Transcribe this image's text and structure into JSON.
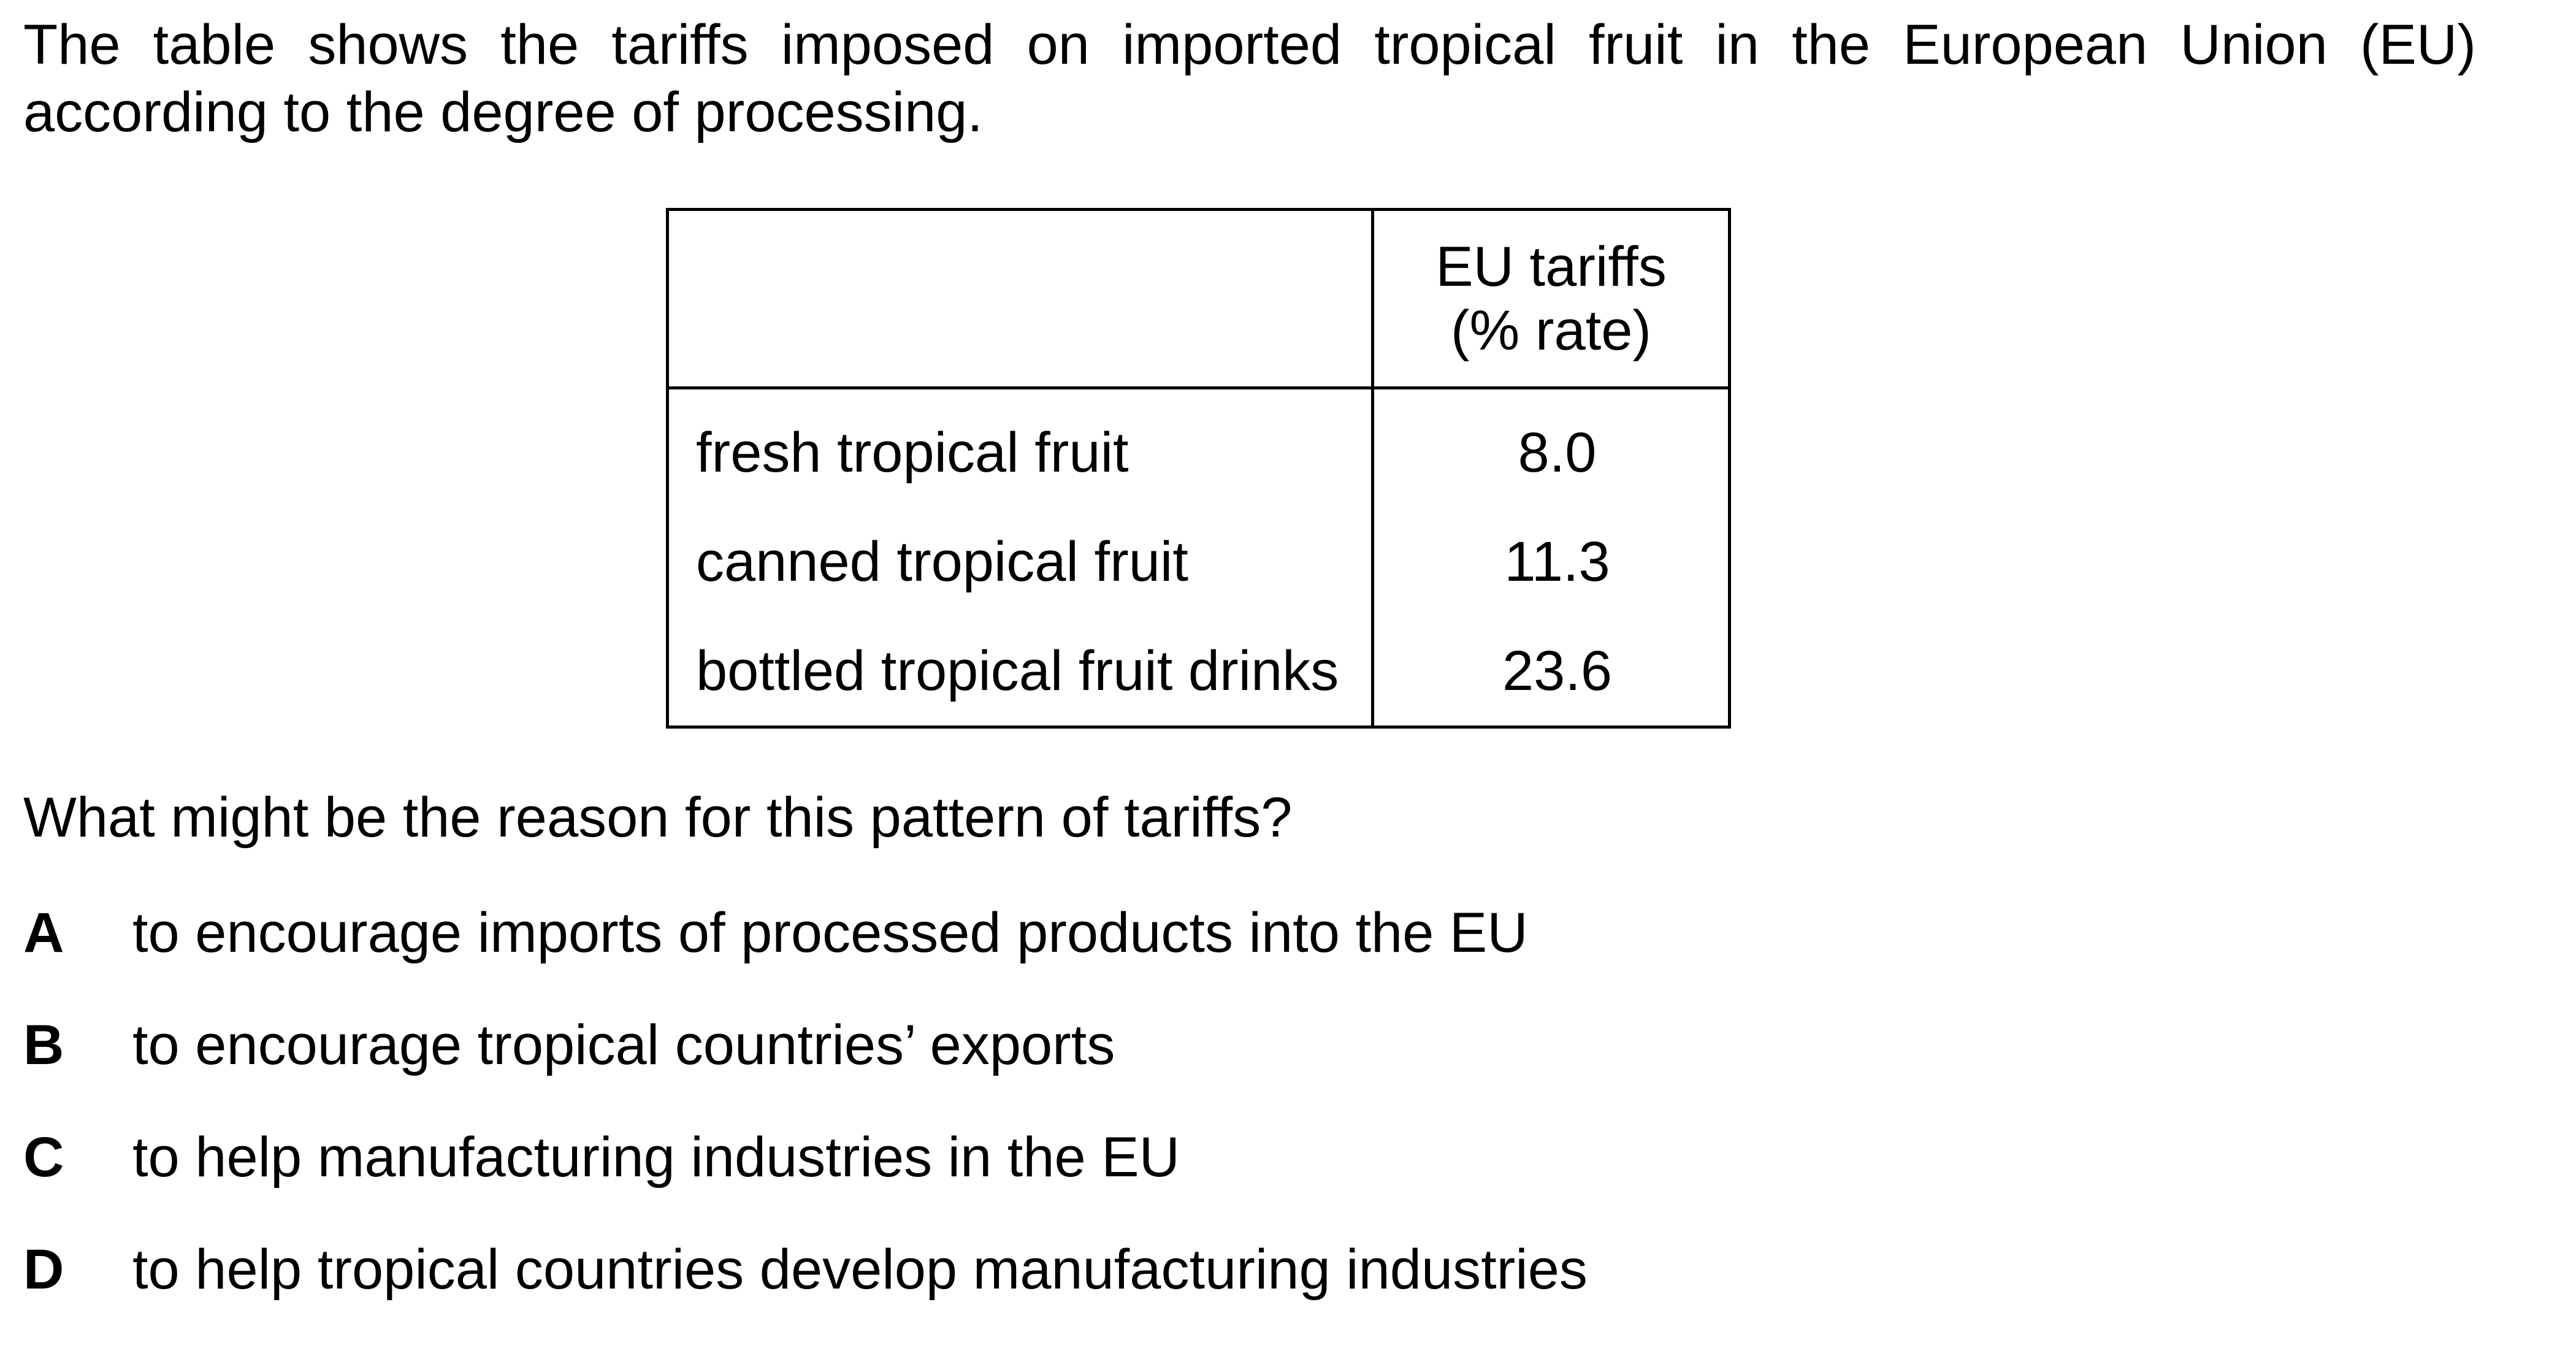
{
  "intro": "The table shows the tariffs imposed on imported tropical fruit in the European Union (EU) according to the degree of processing.",
  "table": {
    "corner_header": "",
    "column_header_line1": "EU tariffs",
    "column_header_line2": "(% rate)",
    "rows": [
      {
        "item": "fresh tropical fruit",
        "rate": "8.0"
      },
      {
        "item": "canned tropical fruit",
        "rate": "11.3"
      },
      {
        "item": "bottled tropical fruit drinks",
        "rate": "23.6"
      }
    ]
  },
  "question": "What might be the reason for this pattern of tariffs?",
  "options": [
    {
      "letter": "A",
      "text": "to encourage imports of processed products into the EU"
    },
    {
      "letter": "B",
      "text": "to encourage tropical countries’ exports"
    },
    {
      "letter": "C",
      "text": "to help manufacturing industries in the EU"
    },
    {
      "letter": "D",
      "text": "to help tropical countries develop manufacturing industries"
    }
  ]
}
